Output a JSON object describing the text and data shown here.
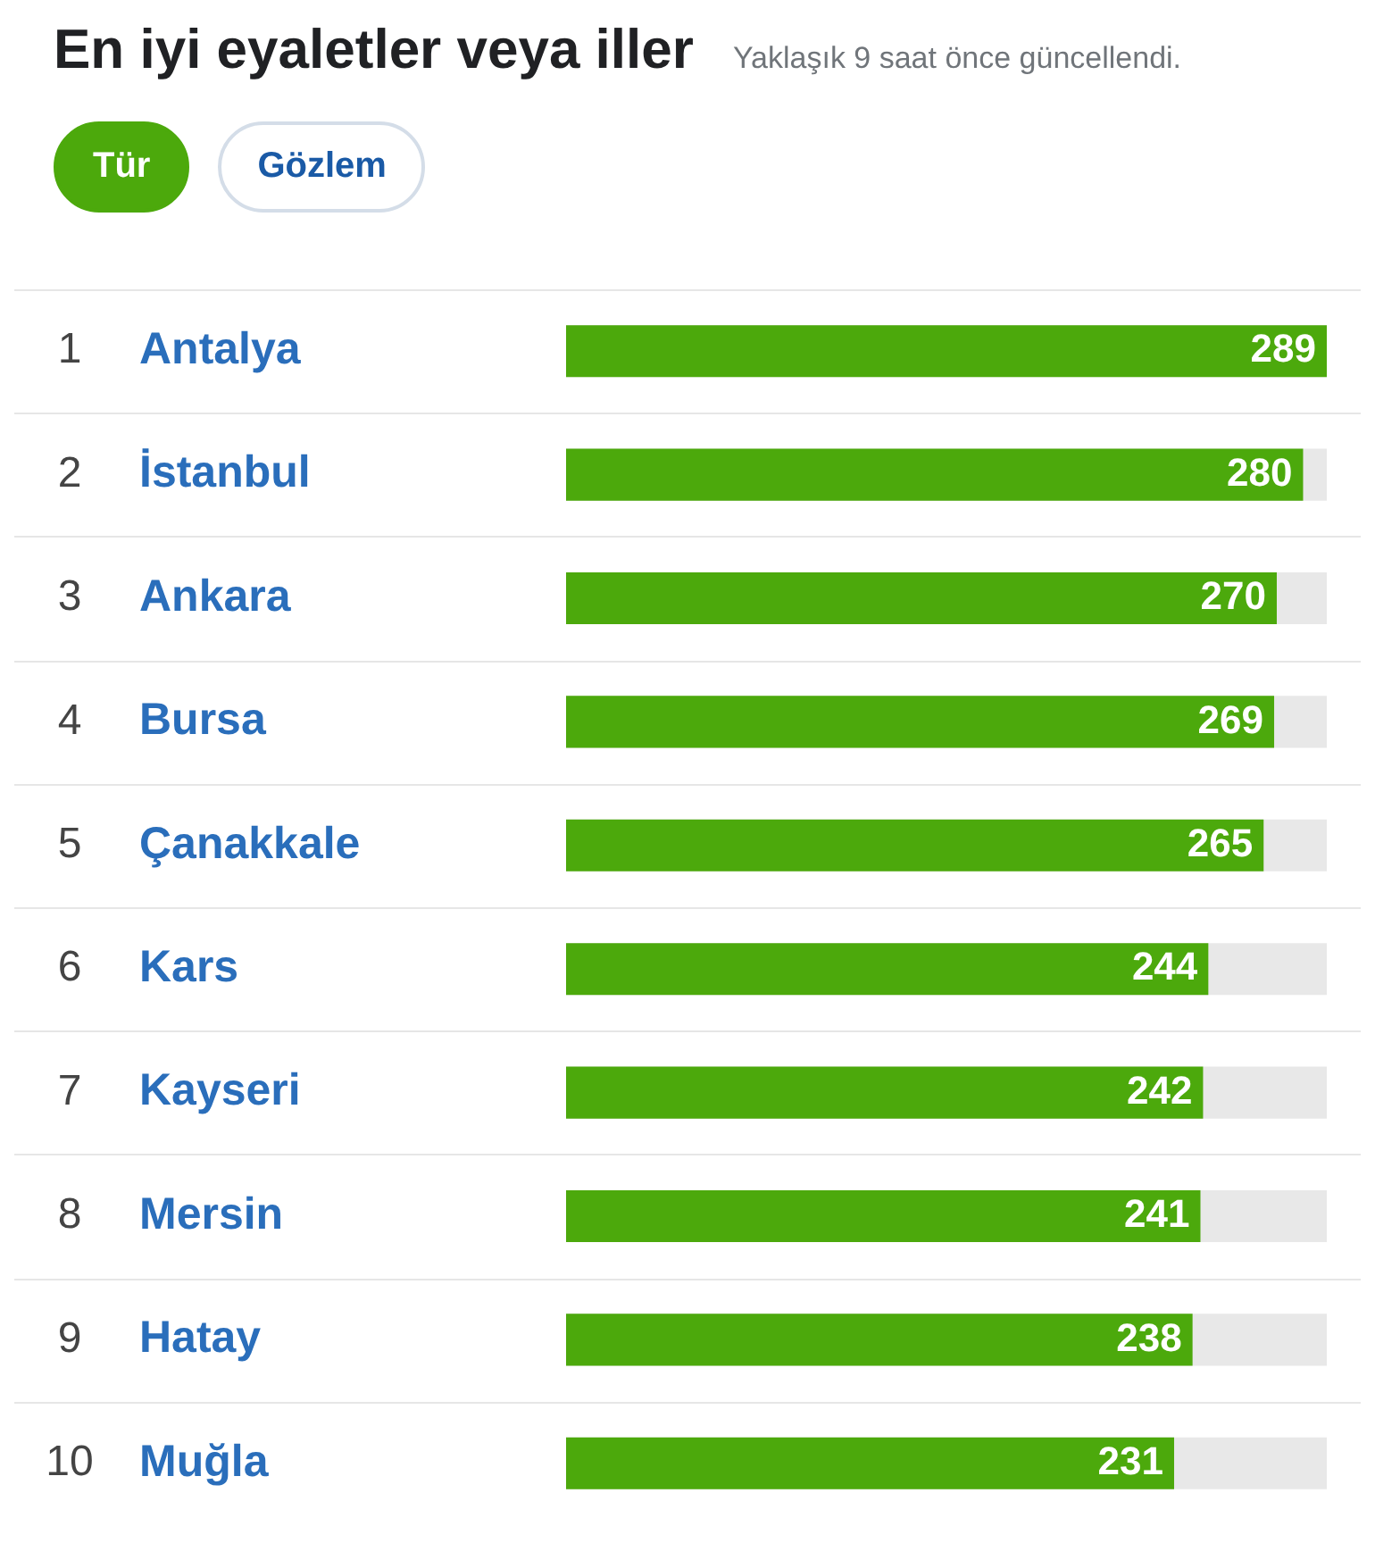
{
  "chart_data": {
    "type": "bar",
    "orientation": "horizontal",
    "title": "En iyi eyaletler veya iller",
    "subtitle": "Yaklaşık 9 saat önce güncellendi.",
    "categories": [
      "Antalya",
      "İstanbul",
      "Ankara",
      "Bursa",
      "Çanakkale",
      "Kars",
      "Kayseri",
      "Mersin",
      "Hatay",
      "Muğla"
    ],
    "values": [
      289,
      280,
      270,
      269,
      265,
      244,
      242,
      241,
      238,
      231
    ],
    "color": "#4ca90c",
    "xlim": [
      0,
      289
    ],
    "data_labels": true,
    "tick_labels": "y",
    "grid": "y",
    "legend": false,
    "annotations": [
      "Tür",
      "Gözlem",
      "1",
      "2",
      "3",
      "4",
      "5",
      "6",
      "7",
      "8",
      "9",
      "10"
    ]
  }
}
